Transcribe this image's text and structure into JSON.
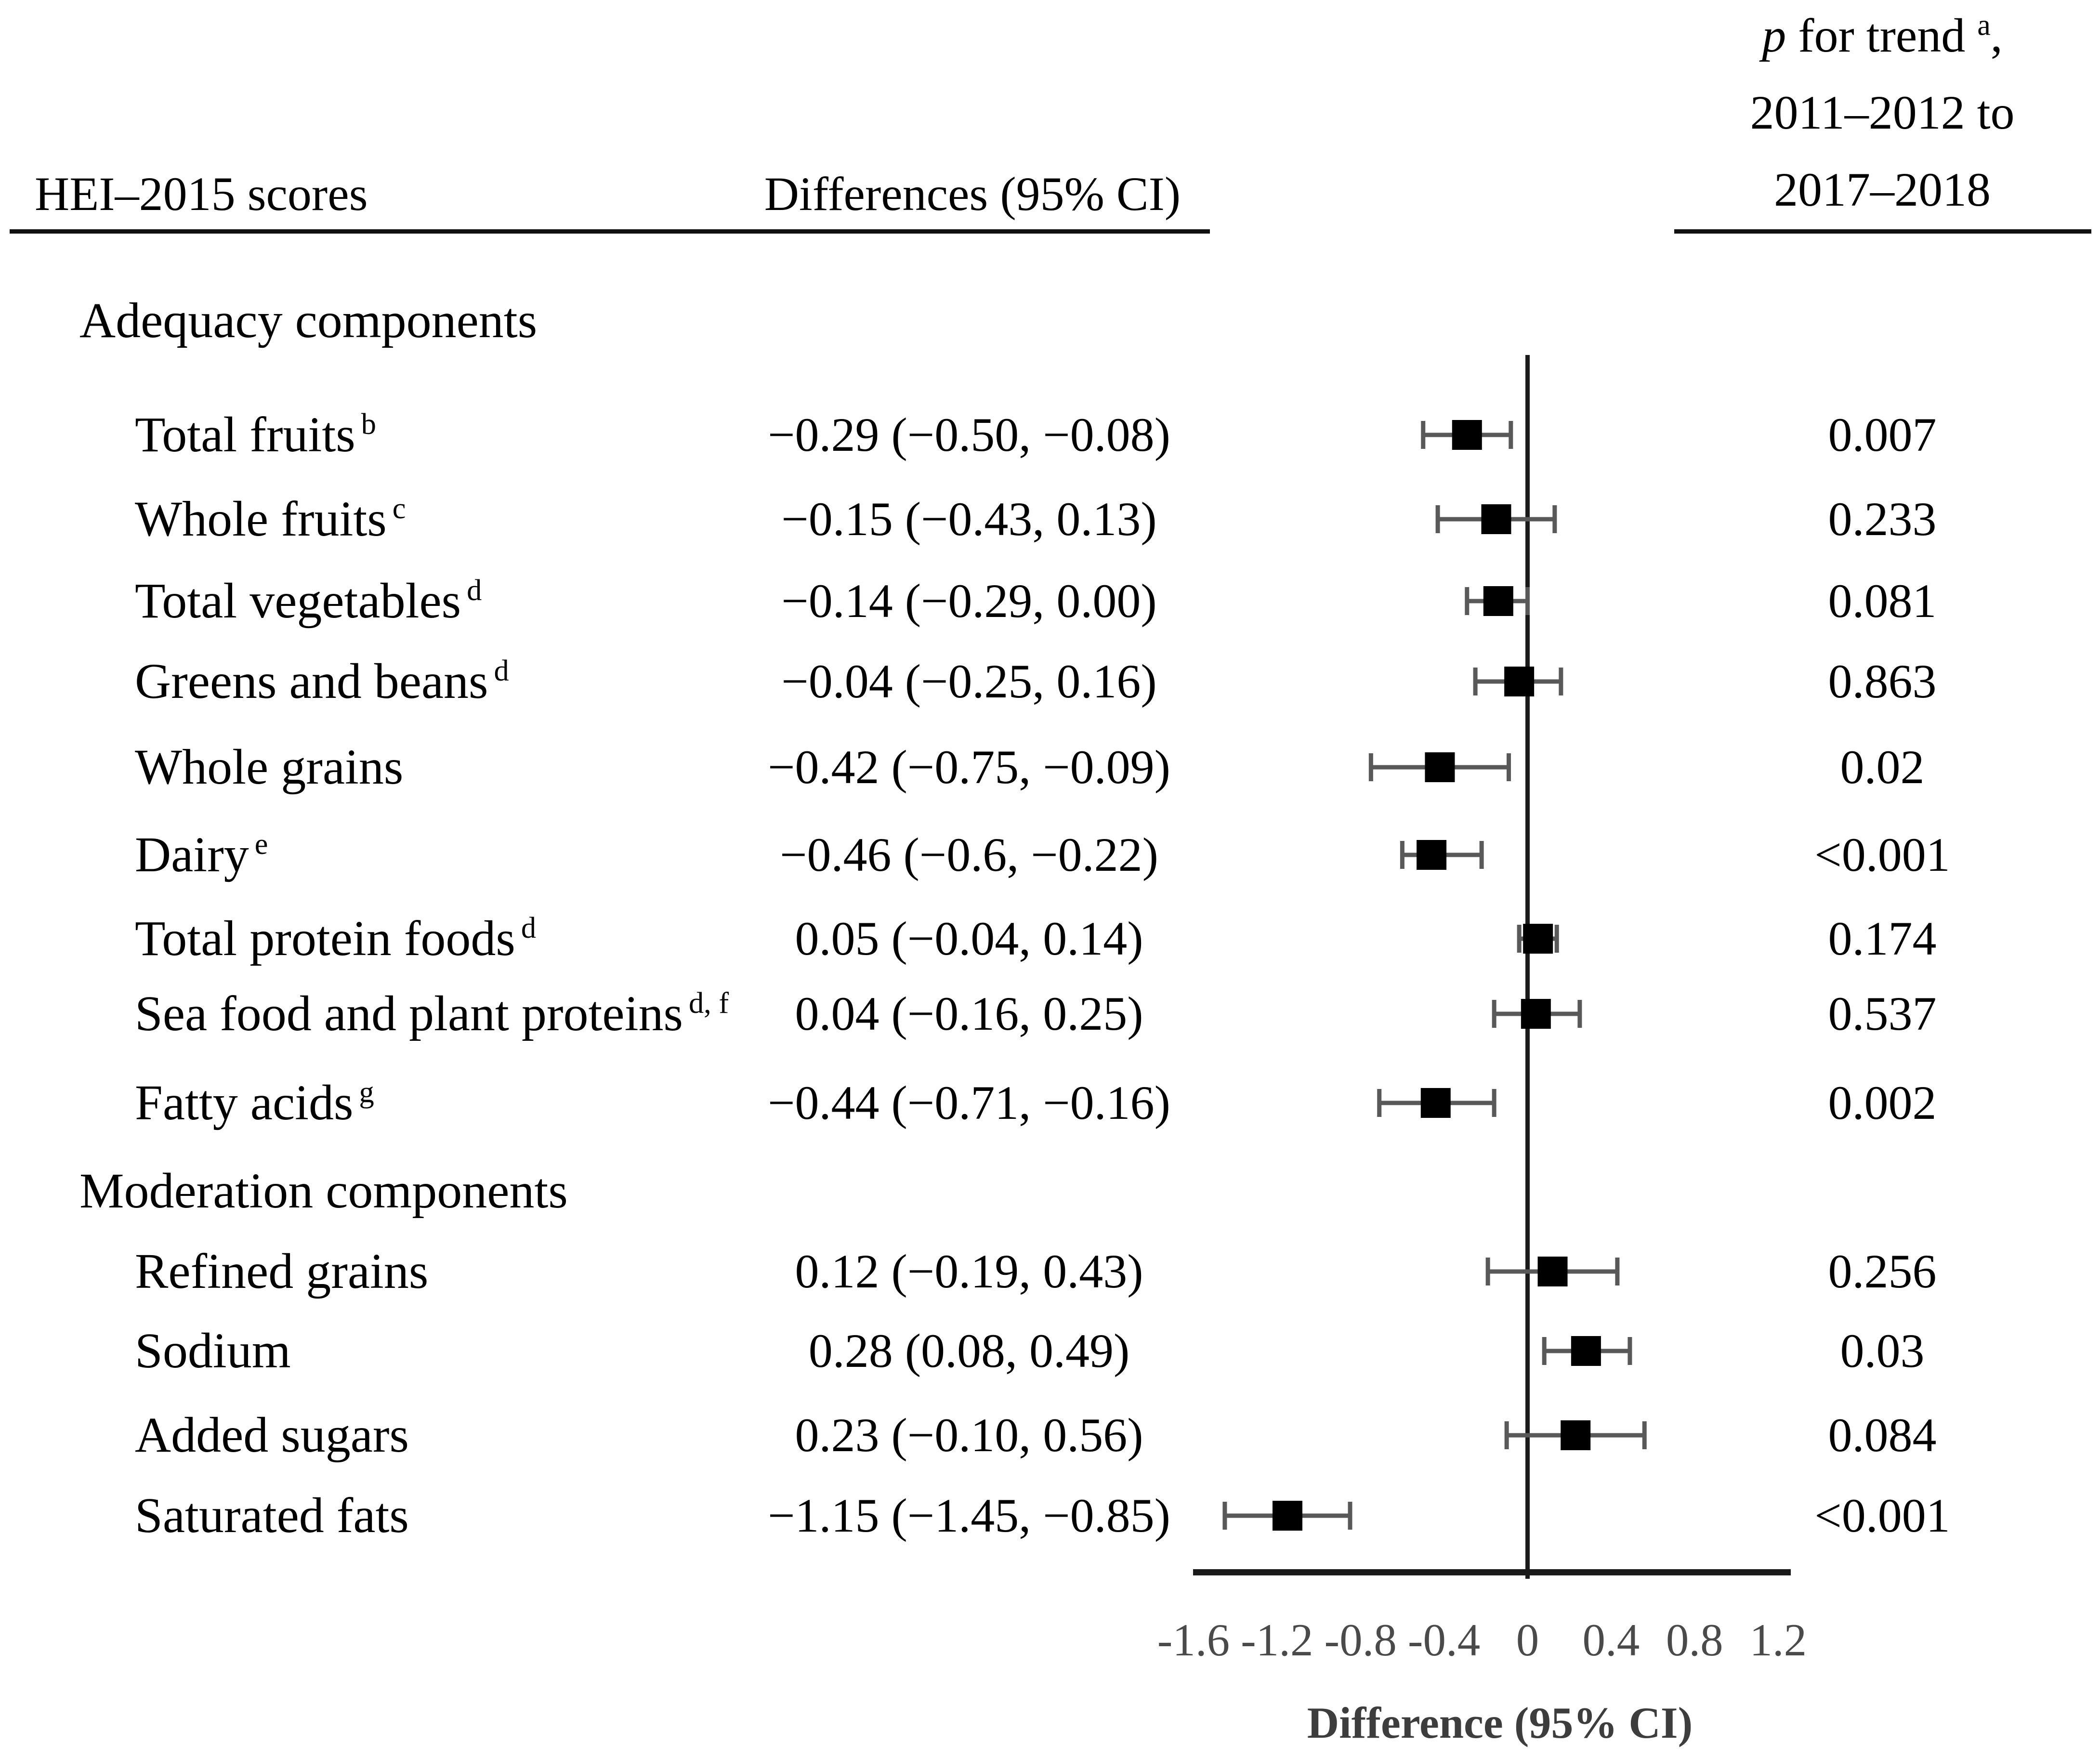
{
  "header": {
    "col1": "HEI–2015 scores",
    "col2": "Differences (95% CI)",
    "col3_line1_italic": "p",
    "col3_line1_text": " for trend ",
    "col3_line1_sup": "a",
    "col3_line1_tail": ",",
    "col3_line2": "2011–2012 to",
    "col3_line3": "2017–2018"
  },
  "rows": [
    {
      "type": "section",
      "label": "Adequacy components"
    },
    {
      "type": "item",
      "label": "Total fruits",
      "sup": "b",
      "ci_text": "−0.29 (−0.50, −0.08)",
      "estimate": -0.29,
      "ci_low": -0.5,
      "ci_high": -0.08,
      "p": "0.007"
    },
    {
      "type": "item",
      "label": "Whole fruits",
      "sup": "c",
      "ci_text": "−0.15 (−0.43, 0.13)",
      "estimate": -0.15,
      "ci_low": -0.43,
      "ci_high": 0.13,
      "p": "0.233"
    },
    {
      "type": "item",
      "label": "Total vegetables",
      "sup": "d",
      "ci_text": "−0.14 (−0.29, 0.00)",
      "estimate": -0.14,
      "ci_low": -0.29,
      "ci_high": 0.0,
      "p": "0.081"
    },
    {
      "type": "item",
      "label": "Greens and beans",
      "sup": "d",
      "ci_text": "−0.04 (−0.25, 0.16)",
      "estimate": -0.04,
      "ci_low": -0.25,
      "ci_high": 0.16,
      "p": "0.863"
    },
    {
      "type": "item",
      "label": "Whole grains",
      "sup": "",
      "ci_text": "−0.42 (−0.75, −0.09)",
      "estimate": -0.42,
      "ci_low": -0.75,
      "ci_high": -0.09,
      "p": "0.02"
    },
    {
      "type": "item",
      "label": "Dairy",
      "sup": "e",
      "ci_text": "−0.46 (−0.6, −0.22)",
      "estimate": -0.46,
      "ci_low": -0.6,
      "ci_high": -0.22,
      "p": "<0.001"
    },
    {
      "type": "item",
      "label": "Total protein foods",
      "sup": "d",
      "ci_text": "0.05 (−0.04, 0.14)",
      "estimate": 0.05,
      "ci_low": -0.04,
      "ci_high": 0.14,
      "p": "0.174"
    },
    {
      "type": "item",
      "label": "Sea food and plant proteins",
      "sup": "d, f",
      "ci_text": "0.04 (−0.16, 0.25)",
      "estimate": 0.04,
      "ci_low": -0.16,
      "ci_high": 0.25,
      "p": "0.537"
    },
    {
      "type": "item",
      "label": "Fatty acids",
      "sup": "g",
      "ci_text": "−0.44 (−0.71, −0.16)",
      "estimate": -0.44,
      "ci_low": -0.71,
      "ci_high": -0.16,
      "p": "0.002"
    },
    {
      "type": "section",
      "label": "Moderation components"
    },
    {
      "type": "item",
      "label": "Refined grains",
      "sup": "",
      "ci_text": "0.12 (−0.19, 0.43)",
      "estimate": 0.12,
      "ci_low": -0.19,
      "ci_high": 0.43,
      "p": "0.256"
    },
    {
      "type": "item",
      "label": "Sodium",
      "sup": "",
      "ci_text": "0.28 (0.08, 0.49)",
      "estimate": 0.28,
      "ci_low": 0.08,
      "ci_high": 0.49,
      "p": "0.03"
    },
    {
      "type": "item",
      "label": "Added sugars",
      "sup": "",
      "ci_text": "0.23 (−0.10, 0.56)",
      "estimate": 0.23,
      "ci_low": -0.1,
      "ci_high": 0.56,
      "p": "0.084"
    },
    {
      "type": "item",
      "label": "Saturated fats",
      "sup": "",
      "ci_text": "−1.15 (−1.45, −0.85)",
      "estimate": -1.15,
      "ci_low": -1.45,
      "ci_high": -0.85,
      "p": "<0.001"
    }
  ],
  "chart_data": {
    "type": "forest",
    "title": "",
    "xlabel": "Difference (95% CI)",
    "x_ticks": [
      -1.6,
      -1.2,
      -0.8,
      -0.4,
      0,
      0.4,
      0.8,
      1.2
    ],
    "x_tick_labels": [
      "-1.6",
      "-1.2",
      "-0.8",
      "-0.4",
      "0",
      "0.4",
      "0.8",
      "1.2"
    ],
    "xlim": [
      -1.6,
      1.26
    ],
    "zero_line": 0,
    "grid": false,
    "categories": [
      "Total fruits",
      "Whole fruits",
      "Total vegetables",
      "Greens and beans",
      "Whole grains",
      "Dairy",
      "Total protein foods",
      "Sea food and plant proteins",
      "Fatty acids",
      "Refined grains",
      "Sodium",
      "Added sugars",
      "Saturated fats"
    ],
    "estimates": [
      -0.29,
      -0.15,
      -0.14,
      -0.04,
      -0.42,
      -0.46,
      0.05,
      0.04,
      -0.44,
      0.12,
      0.28,
      0.23,
      -1.15
    ],
    "ci_low": [
      -0.5,
      -0.43,
      -0.29,
      -0.25,
      -0.75,
      -0.6,
      -0.04,
      -0.16,
      -0.71,
      -0.19,
      0.08,
      -0.1,
      -1.45
    ],
    "ci_high": [
      -0.08,
      0.13,
      0.0,
      0.16,
      -0.09,
      -0.22,
      0.14,
      0.25,
      -0.16,
      0.43,
      0.49,
      0.56,
      -0.85
    ],
    "p_for_trend": [
      "0.007",
      "0.233",
      "0.081",
      "0.863",
      "0.02",
      "<0.001",
      "0.174",
      "0.537",
      "0.002",
      "0.256",
      "0.03",
      "0.084",
      "<0.001"
    ]
  },
  "colors": {
    "marker": "#000000",
    "whisker": "#595959",
    "axis": "#1a1a1a",
    "tick_text": "#4a4a4a",
    "axis_title": "#3d3d3d",
    "text": "#000000",
    "rule": "#111111"
  }
}
